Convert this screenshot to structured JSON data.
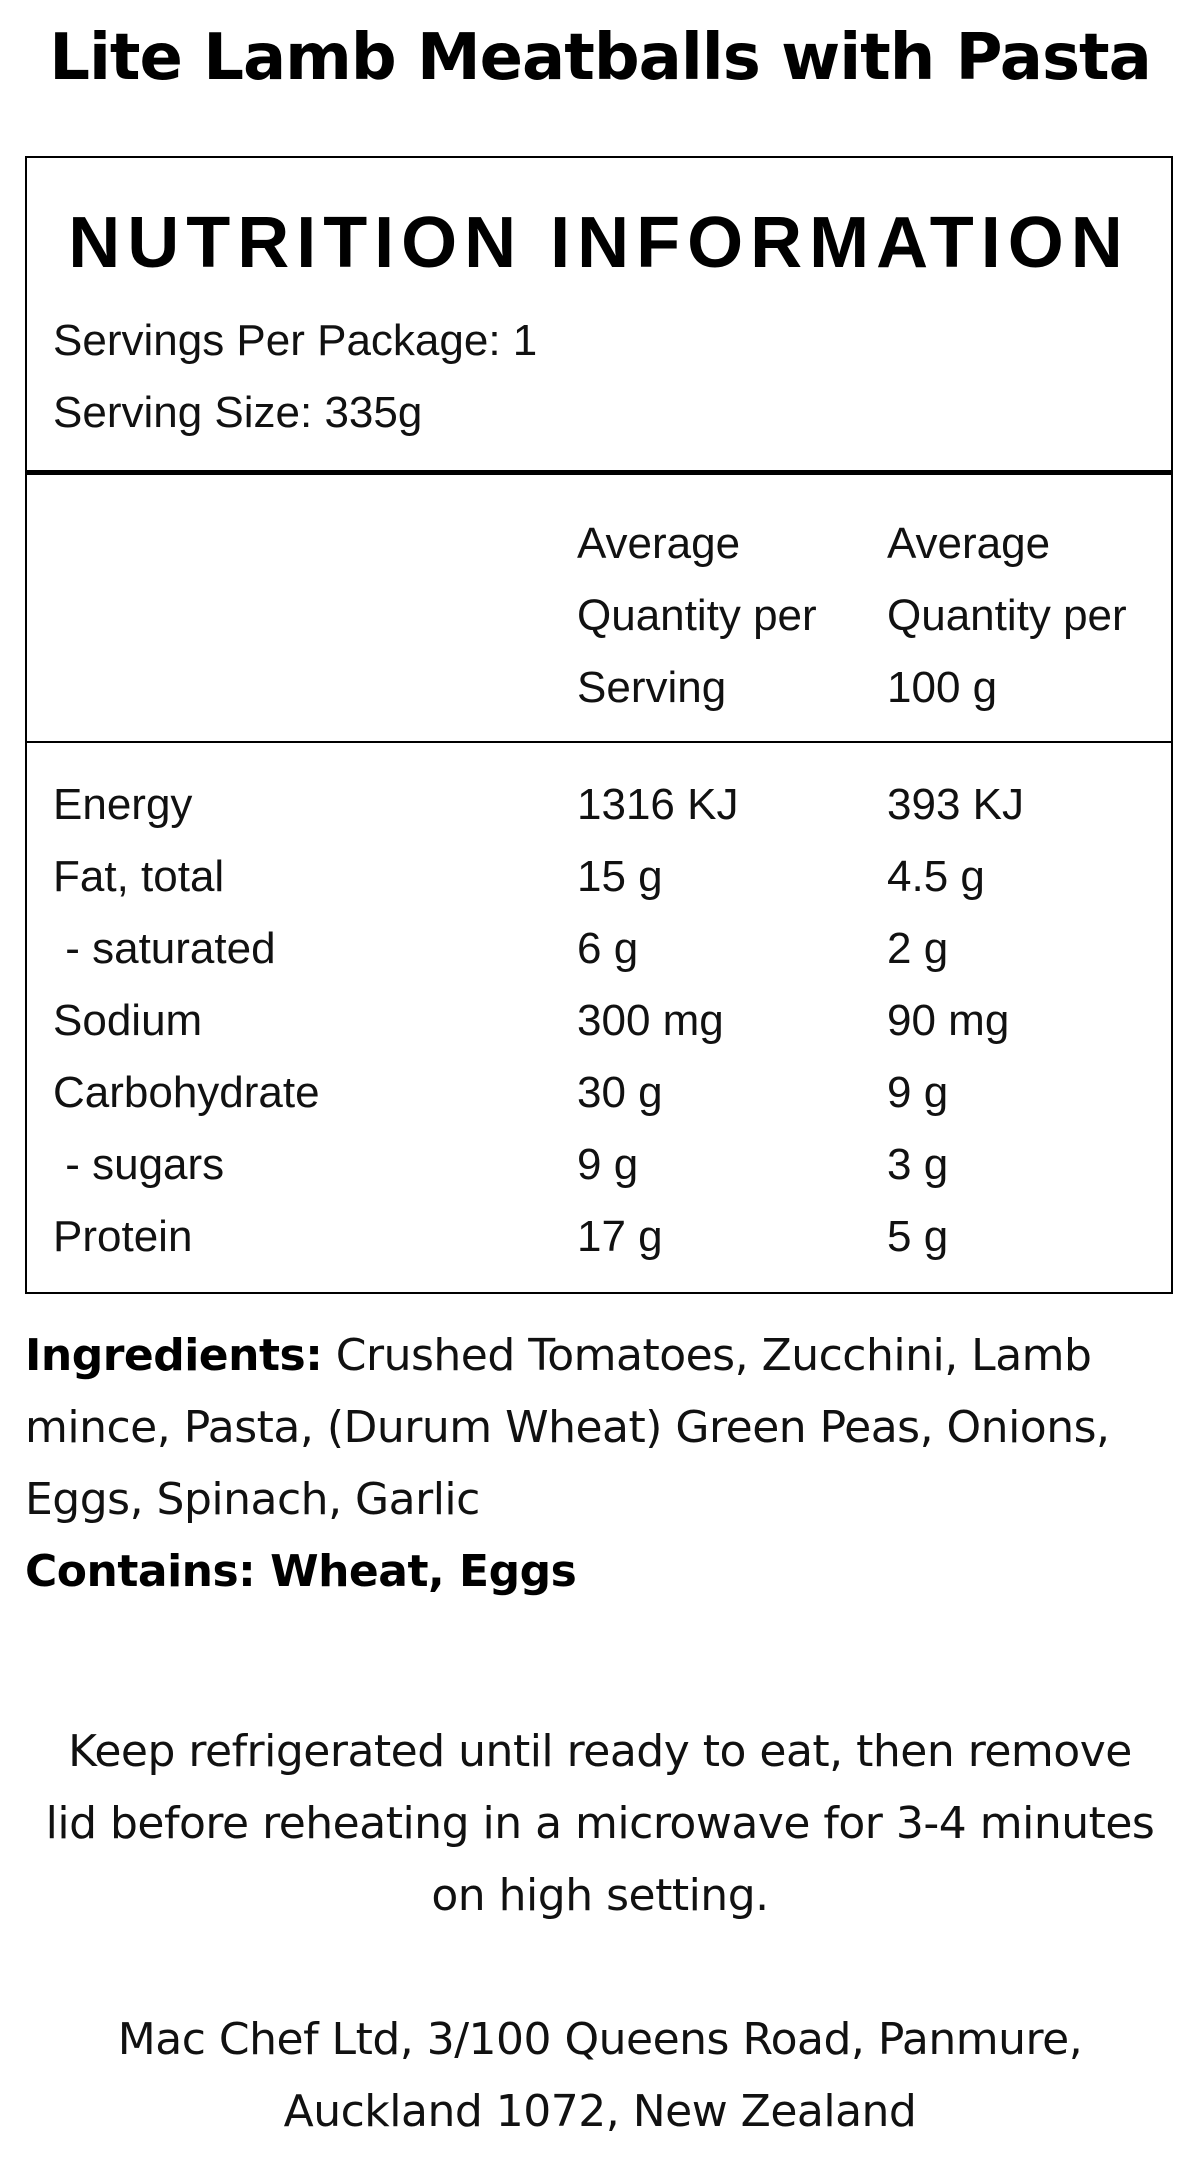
{
  "product": {
    "title": "Lite Lamb Meatballs with Pasta"
  },
  "nutrition": {
    "heading": "NUTRITION INFORMATION",
    "servings_per_package": "Servings Per Package: 1",
    "serving_size": "Serving Size: 335g",
    "columns": {
      "per_serving": [
        "Average",
        "Quantity per",
        "Serving"
      ],
      "per_100g": [
        "Average",
        "Quantity per",
        "100 g"
      ]
    },
    "rows": [
      {
        "name": "Energy",
        "per_serving": "1316 KJ",
        "per_100g": "393 KJ"
      },
      {
        "name": "Fat, total",
        "per_serving": "15 g",
        "per_100g": "4.5 g"
      },
      {
        "name": " - saturated",
        "per_serving": "6 g",
        "per_100g": "2 g"
      },
      {
        "name": "Sodium",
        "per_serving": "300 mg",
        "per_100g": "90 mg"
      },
      {
        "name": "Carbohydrate",
        "per_serving": "30 g",
        "per_100g": "9 g"
      },
      {
        "name": " - sugars",
        "per_serving": "9 g",
        "per_100g": "3 g"
      },
      {
        "name": "Protein",
        "per_serving": "17 g",
        "per_100g": "5 g"
      }
    ]
  },
  "ingredients": {
    "label": "Ingredients:",
    "text": "Crushed Tomatoes, Zucchini, Lamb mince, Pasta, (Durum Wheat) Green Peas, Onions, Eggs, Spinach, Garlic"
  },
  "contains": "Contains: Wheat, Eggs",
  "storage": "Keep refrigerated until ready to eat, then remove lid before reheating in a microwave for 3-4 minutes on high setting.",
  "address": {
    "line1": "Mac Chef Ltd, 3/100 Queens Road, Panmure,",
    "line2": "Auckland 1072, New Zealand"
  }
}
